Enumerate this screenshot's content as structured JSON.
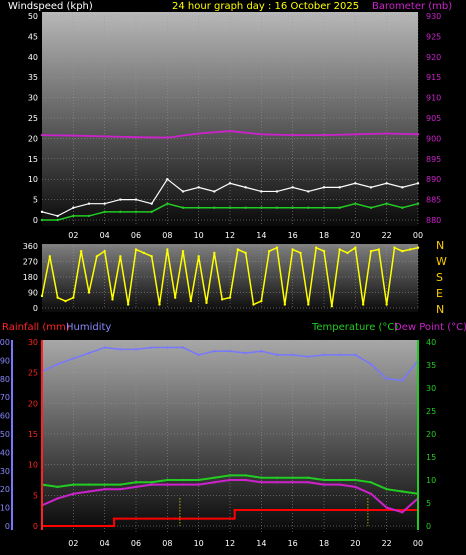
{
  "header": {
    "left": "Windspeed (kph)",
    "center": "24 hour graph day : 16 October 2025",
    "right": "Barometer (mb)"
  },
  "bottom_header": {
    "rainfall": "Rainfall (mm)",
    "humidity": "Humidity",
    "temperature": "Temperature (°C)",
    "dewpoint": "Dew Point (°C)"
  },
  "compass": [
    "N",
    "W",
    "S",
    "E",
    "N"
  ],
  "colors": {
    "wind_gust": "#ffffff",
    "wind_avg": "#22cc22",
    "barometer": "#cc22cc",
    "direction": "#ffff00",
    "rainfall": "#ff0000",
    "humidity": "#7777ff",
    "temperature": "#22cc22",
    "dewpoint": "#cc22cc",
    "rain_marker": "#ffff00"
  },
  "chart_data": [
    {
      "type": "line",
      "x_ticks": [
        "02",
        "04",
        "06",
        "08",
        "10",
        "12",
        "14",
        "16",
        "18",
        "20",
        "22",
        "00"
      ],
      "y_left_ticks": [
        "0",
        "5",
        "10",
        "15",
        "20",
        "25",
        "30",
        "35",
        "40",
        "45",
        "50"
      ],
      "y_right_ticks": [
        "880",
        "885",
        "890",
        "895",
        "900",
        "905",
        "910",
        "915",
        "920",
        "925",
        "930"
      ],
      "ylim_left": [
        0,
        50
      ],
      "ylim_right": [
        880,
        930
      ],
      "xlim": [
        0,
        24
      ],
      "series": [
        {
          "name": "Windspeed (kph)",
          "axis": "left",
          "x": [
            0,
            1,
            2,
            3,
            4,
            5,
            6,
            7,
            8,
            9,
            10,
            11,
            12,
            13,
            14,
            15,
            16,
            17,
            18,
            19,
            20,
            21,
            22,
            23,
            24
          ],
          "y": [
            2,
            1,
            3,
            4,
            4,
            5,
            5,
            4,
            10,
            7,
            8,
            7,
            9,
            8,
            7,
            7,
            8,
            7,
            8,
            8,
            9,
            8,
            9,
            8,
            9
          ]
        },
        {
          "name": "Average windspeed",
          "axis": "left",
          "x": [
            0,
            1,
            2,
            3,
            4,
            5,
            6,
            7,
            8,
            9,
            10,
            11,
            12,
            13,
            14,
            15,
            16,
            17,
            18,
            19,
            20,
            21,
            22,
            23,
            24
          ],
          "y": [
            0,
            0,
            1,
            1,
            2,
            2,
            2,
            2,
            4,
            3,
            3,
            3,
            3,
            3,
            3,
            3,
            3,
            3,
            3,
            3,
            4,
            3,
            4,
            3,
            4
          ]
        },
        {
          "name": "Barometer (mb)",
          "axis": "right",
          "x": [
            0,
            2,
            4,
            6,
            8,
            10,
            12,
            14,
            16,
            18,
            20,
            22,
            24
          ],
          "y": [
            900.8,
            900.7,
            900.5,
            900.3,
            900.2,
            901.2,
            901.8,
            901.0,
            900.8,
            900.8,
            901.0,
            901.2,
            901.0
          ]
        }
      ]
    },
    {
      "type": "scatter",
      "y_ticks": [
        "0",
        "90",
        "180",
        "270",
        "360"
      ],
      "ylim": [
        0,
        360
      ],
      "xlim": [
        0,
        24
      ],
      "series": [
        {
          "name": "Wind direction",
          "x": [
            0,
            0.5,
            1,
            1.5,
            2,
            2.5,
            3,
            3.5,
            4,
            4.5,
            5,
            5.5,
            6,
            6.5,
            7,
            7.5,
            8,
            8.5,
            9,
            9.5,
            10,
            10.5,
            11,
            11.5,
            12,
            12.5,
            13,
            13.5,
            14,
            14.5,
            15,
            15.5,
            16,
            16.5,
            17,
            17.5,
            18,
            18.5,
            19,
            19.5,
            20,
            20.5,
            21,
            21.5,
            22,
            22.5,
            23,
            23.5,
            24
          ],
          "y": [
            70,
            300,
            60,
            40,
            60,
            330,
            90,
            300,
            330,
            50,
            300,
            20,
            340,
            320,
            300,
            20,
            340,
            60,
            330,
            40,
            300,
            30,
            320,
            50,
            60,
            340,
            320,
            20,
            40,
            330,
            350,
            20,
            340,
            320,
            20,
            350,
            330,
            10,
            340,
            320,
            350,
            20,
            330,
            340,
            20,
            350,
            330,
            340,
            350
          ]
        }
      ]
    },
    {
      "type": "line",
      "x_ticks": [
        "02",
        "04",
        "06",
        "08",
        "10",
        "12",
        "14",
        "16",
        "18",
        "20",
        "22",
        "00"
      ],
      "y_humidity_ticks": [
        "0",
        "10",
        "20",
        "30",
        "40",
        "50",
        "60",
        "70",
        "80",
        "90",
        "100"
      ],
      "y_rain_ticks": [
        "0",
        "5",
        "10",
        "15",
        "20",
        "25",
        "30"
      ],
      "y_temp_ticks": [
        "0",
        "5",
        "10",
        "15",
        "20",
        "25",
        "30",
        "35",
        "40"
      ],
      "ylim_humidity": [
        0,
        100
      ],
      "ylim_rain": [
        0,
        30
      ],
      "ylim_temp": [
        0,
        40
      ],
      "xlim": [
        0,
        24
      ],
      "series": [
        {
          "name": "Humidity",
          "axis": "humidity",
          "x": [
            0,
            1,
            2,
            3,
            4,
            5,
            6,
            7,
            8,
            9,
            10,
            11,
            12,
            13,
            14,
            15,
            16,
            17,
            18,
            19,
            20,
            21,
            22,
            23,
            24
          ],
          "y": [
            84,
            88,
            91,
            94,
            97,
            96,
            96,
            97,
            97,
            97,
            93,
            95,
            95,
            94,
            95,
            93,
            93,
            92,
            93,
            93,
            93,
            88,
            80,
            79,
            90
          ]
        },
        {
          "name": "Rainfall (mm)",
          "axis": "rain",
          "x": [
            0,
            4.3,
            4.6,
            8.5,
            12.2,
            12.3,
            20.5,
            24
          ],
          "y": [
            0,
            0,
            1.2,
            1.2,
            1.2,
            2.6,
            2.6,
            2.6
          ]
        },
        {
          "name": "Temperature (°C)",
          "axis": "temp",
          "x": [
            0,
            1,
            2,
            3,
            4,
            5,
            6,
            7,
            8,
            9,
            10,
            11,
            12,
            13,
            14,
            15,
            16,
            17,
            18,
            19,
            20,
            21,
            22,
            23,
            24
          ],
          "y": [
            9,
            8.5,
            9,
            9,
            9,
            9,
            9.5,
            9.5,
            10,
            10,
            10,
            10.5,
            11,
            11,
            10.5,
            10.5,
            10.5,
            10.5,
            10,
            10,
            10,
            9.5,
            8,
            7.5,
            7
          ]
        },
        {
          "name": "Dew Point (°C)",
          "axis": "temp",
          "x": [
            0,
            1,
            2,
            3,
            4,
            5,
            6,
            7,
            8,
            9,
            10,
            11,
            12,
            13,
            14,
            15,
            16,
            17,
            18,
            19,
            20,
            21,
            22,
            23,
            24
          ],
          "y": [
            4.5,
            6,
            7,
            7.5,
            8,
            8,
            8.5,
            9,
            9,
            9,
            9,
            9.5,
            10,
            10,
            9.5,
            9.5,
            9.5,
            9.5,
            9,
            9,
            8.5,
            7,
            4,
            3,
            6
          ]
        }
      ],
      "rain_markers_x": [
        8.8,
        20.8
      ]
    }
  ]
}
